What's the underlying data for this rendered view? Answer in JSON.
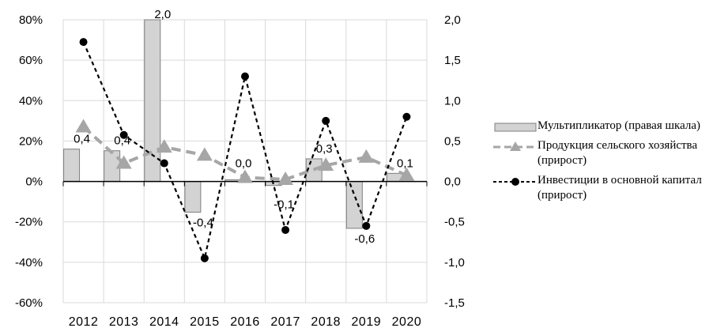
{
  "chart_data": {
    "type": "bar",
    "categories": [
      "2012",
      "2013",
      "2014",
      "2015",
      "2016",
      "2017",
      "2018",
      "2019",
      "2020"
    ],
    "left_axis": {
      "ylim": [
        -60,
        80
      ],
      "ticks": [
        "80%",
        "60%",
        "40%",
        "20%",
        "0%",
        "-20%",
        "-40%",
        "-60%"
      ],
      "tick_values": [
        80,
        60,
        40,
        20,
        0,
        -20,
        -40,
        -60
      ]
    },
    "right_axis": {
      "ylim": [
        -1.5,
        2.0
      ],
      "ticks": [
        "2,0",
        "1,5",
        "1,0",
        "0,5",
        "0,0",
        "-0,5",
        "-1,0",
        "-1,5"
      ],
      "tick_values": [
        2.0,
        1.5,
        1.0,
        0.5,
        0.0,
        -0.5,
        -1.0,
        -1.5
      ]
    },
    "grid": true,
    "legend_position": "right",
    "series": [
      {
        "name": "Мультипликатор (правая шкала)",
        "type": "bar",
        "axis": "right",
        "color": "#d3d3d3",
        "values": [
          0.4,
          0.38,
          2.0,
          -0.38,
          0.02,
          -0.05,
          0.28,
          -0.58,
          0.1
        ],
        "labels": [
          "0,4",
          "0,4",
          "2,0",
          "-0,4",
          "0,0",
          "-0,1",
          "0,3",
          "-0,6",
          "0,1"
        ]
      },
      {
        "name": "Продукция сельского хозяйства (прирост)",
        "type": "line",
        "axis": "left",
        "color": "#a6a6a6",
        "marker": "triangle",
        "values": [
          27,
          9,
          17,
          13,
          2,
          1,
          8,
          12,
          3
        ]
      },
      {
        "name": "Инвестиции в основной капитал (прирост)",
        "type": "line",
        "axis": "left",
        "color": "#000000",
        "marker": "circle",
        "values": [
          69,
          23,
          9,
          -38,
          52,
          -24,
          30,
          -22,
          32
        ]
      }
    ]
  },
  "legend": {
    "items": [
      {
        "label": "Мультипликатор (правая шкала)"
      },
      {
        "label": "Продукция сельского хозяйства (прирост)"
      },
      {
        "label": "Инвестиции в основной капитал (прирост)"
      }
    ]
  }
}
